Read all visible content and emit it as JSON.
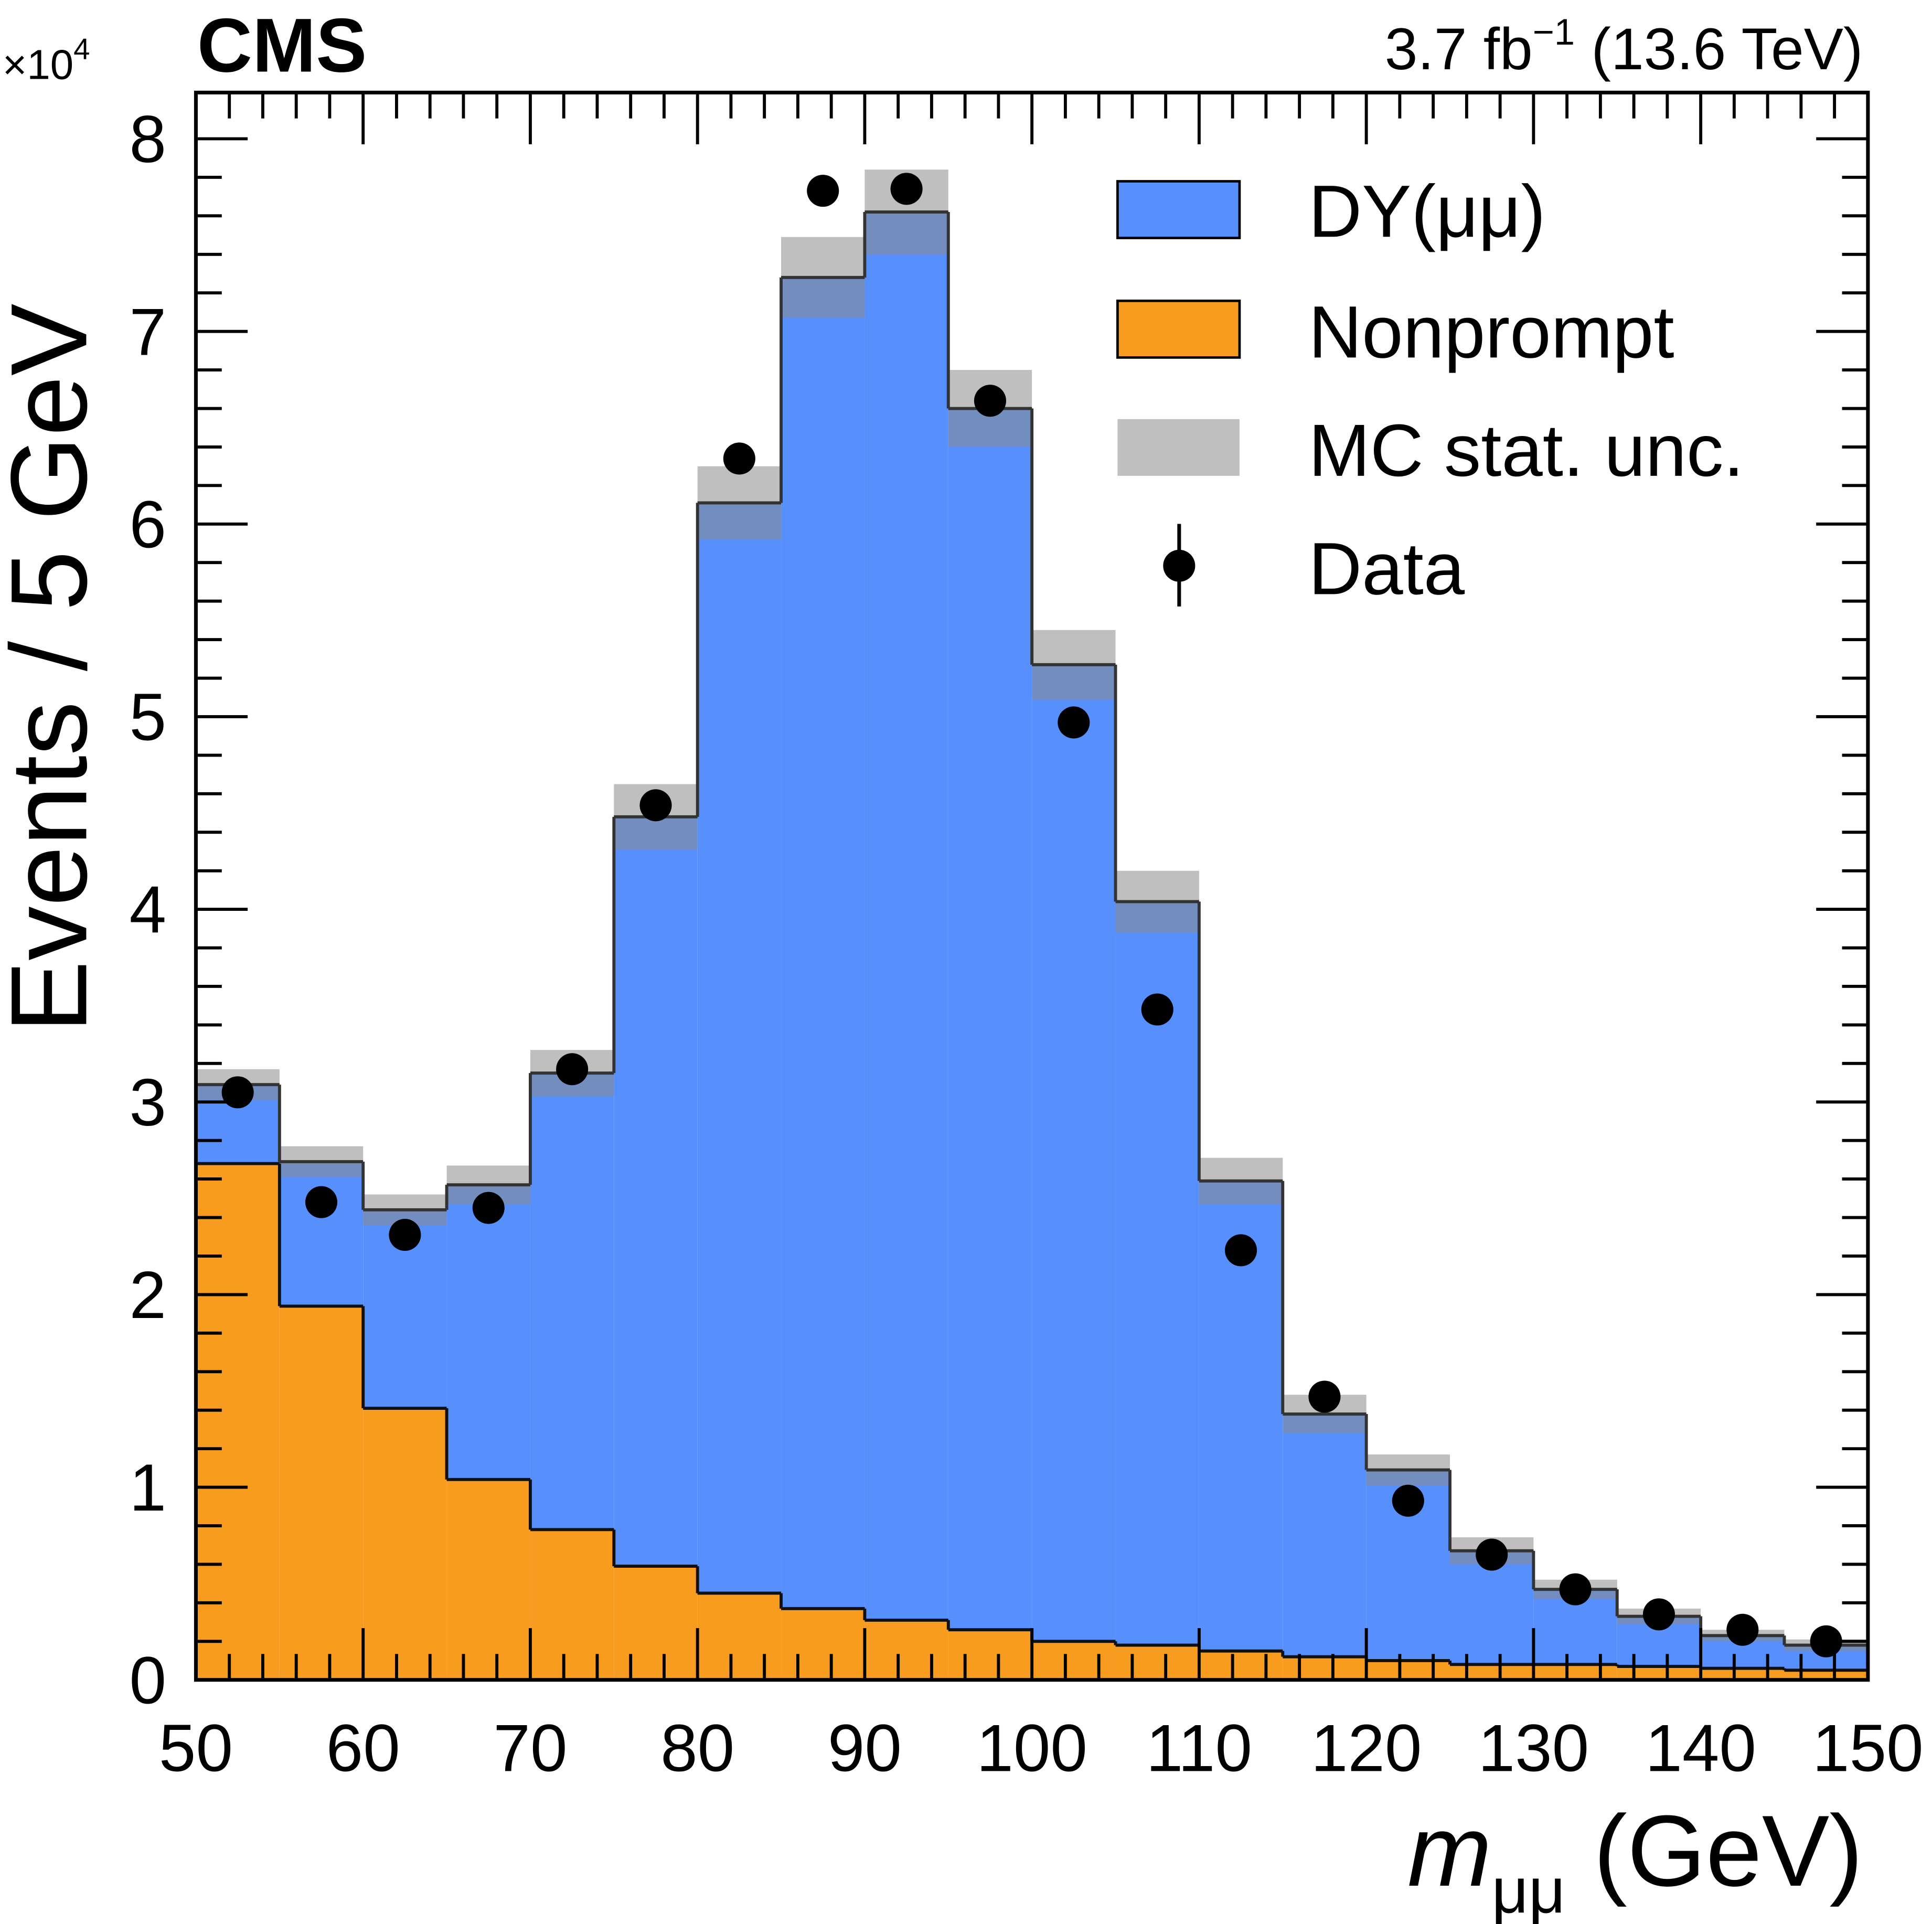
{
  "chart_data": {
    "type": "bar",
    "subtype": "stacked-histogram",
    "experiment": "CMS",
    "lumi_label": "3.7 fb",
    "lumi_exp": "−1",
    "energy_label": "(13.6 TeV)",
    "y_multiplier": "×10",
    "y_multiplier_exp": "4",
    "xlabel_main": "m",
    "xlabel_sub": "μμ",
    "xlabel_unit": "(GeV)",
    "ylabel": "Events / 5 GeV",
    "xlim": [
      50,
      150
    ],
    "ylim": [
      0,
      8.24
    ],
    "xticks": [
      50,
      60,
      70,
      80,
      90,
      100,
      110,
      120,
      130,
      140,
      150
    ],
    "yticks": [
      0,
      1,
      2,
      3,
      4,
      5,
      6,
      7,
      8
    ],
    "bin_edges": [
      50,
      55,
      60,
      65,
      70,
      75,
      80,
      85,
      90,
      95,
      100,
      105,
      110,
      115,
      120,
      125,
      130,
      135,
      140,
      145,
      150
    ],
    "series": [
      {
        "name": "Nonprompt",
        "color": "#f89c20",
        "values": [
          2.68,
          1.94,
          1.41,
          1.04,
          0.78,
          0.59,
          0.45,
          0.37,
          0.31,
          0.26,
          0.2,
          0.18,
          0.15,
          0.12,
          0.1,
          0.08,
          0.08,
          0.07,
          0.06,
          0.05
        ]
      },
      {
        "name": "DY(μμ)",
        "color": "#5790fc",
        "values": [
          0.41,
          0.75,
          1.03,
          1.53,
          2.37,
          3.89,
          5.66,
          6.91,
          7.31,
          6.34,
          5.07,
          3.86,
          2.44,
          1.26,
          0.99,
          0.59,
          0.39,
          0.26,
          0.17,
          0.13
        ]
      }
    ],
    "mc_stat_unc": {
      "name": "MC stat. unc.",
      "color": "#b0b0b0",
      "values": [
        0.08,
        0.08,
        0.08,
        0.1,
        0.12,
        0.17,
        0.19,
        0.21,
        0.22,
        0.2,
        0.18,
        0.16,
        0.12,
        0.1,
        0.08,
        0.07,
        0.05,
        0.04,
        0.03,
        0.03
      ]
    },
    "data": {
      "name": "Data",
      "values": [
        3.05,
        2.48,
        2.31,
        2.45,
        3.17,
        4.54,
        6.34,
        7.73,
        7.74,
        6.64,
        4.97,
        3.48,
        2.23,
        1.47,
        0.93,
        0.65,
        0.47,
        0.34,
        0.26,
        0.2
      ]
    },
    "legend": {
      "placement": "top-right",
      "entries": [
        "DY(μμ)",
        "Nonprompt",
        "MC stat. unc.",
        "Data"
      ]
    }
  }
}
